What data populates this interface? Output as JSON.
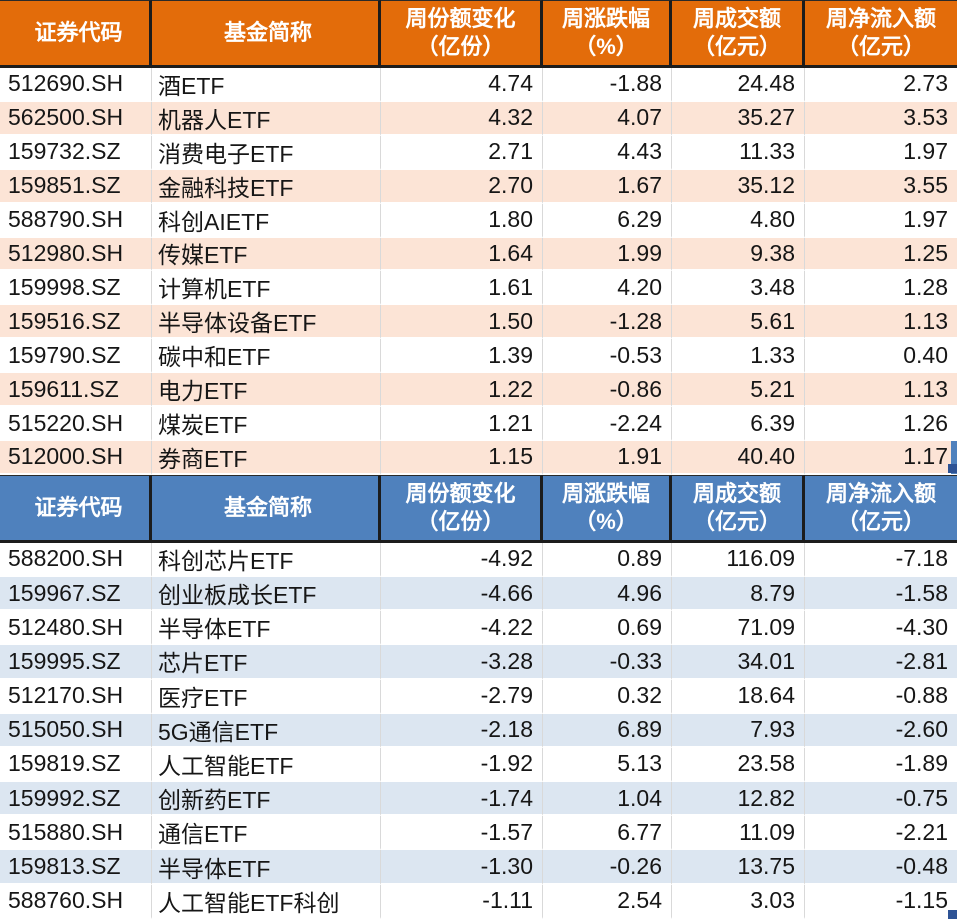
{
  "colors": {
    "inflow_header": "#E36C0A",
    "inflow_alt_row": "#FCE4D6",
    "outflow_header": "#4F81BD",
    "outflow_alt_row": "#DCE6F1",
    "fill_handle": "#2E5395",
    "data_text": "#161616",
    "header_text": "#FFFFFF"
  },
  "tables": [
    {
      "name": "inflow-table",
      "theme": "orange",
      "headers": [
        {
          "title": "证券代码",
          "unit": ""
        },
        {
          "title": "基金简称",
          "unit": ""
        },
        {
          "title": "周份额变化",
          "unit": "（亿份）"
        },
        {
          "title": "周涨跌幅",
          "unit": "（%）"
        },
        {
          "title": "周成交额",
          "unit": "（亿元）"
        },
        {
          "title": "周净流入额",
          "unit": "（亿元）"
        }
      ],
      "rows": [
        [
          "512690.SH",
          "酒ETF",
          "4.74",
          "-1.88",
          "24.48",
          "2.73"
        ],
        [
          "562500.SH",
          "机器人ETF",
          "4.32",
          "4.07",
          "35.27",
          "3.53"
        ],
        [
          "159732.SZ",
          "消费电子ETF",
          "2.71",
          "4.43",
          "11.33",
          "1.97"
        ],
        [
          "159851.SZ",
          "金融科技ETF",
          "2.70",
          "1.67",
          "35.12",
          "3.55"
        ],
        [
          "588790.SH",
          "科创AIETF",
          "1.80",
          "6.29",
          "4.80",
          "1.97"
        ],
        [
          "512980.SH",
          "传媒ETF",
          "1.64",
          "1.99",
          "9.38",
          "1.25"
        ],
        [
          "159998.SZ",
          "计算机ETF",
          "1.61",
          "4.20",
          "3.48",
          "1.28"
        ],
        [
          "159516.SZ",
          "半导体设备ETF",
          "1.50",
          "-1.28",
          "5.61",
          "1.13"
        ],
        [
          "159790.SZ",
          "碳中和ETF",
          "1.39",
          "-0.53",
          "1.33",
          "0.40"
        ],
        [
          "159611.SZ",
          "电力ETF",
          "1.22",
          "-0.86",
          "5.21",
          "1.13"
        ],
        [
          "515220.SH",
          "煤炭ETF",
          "1.21",
          "-2.24",
          "6.39",
          "1.26"
        ],
        [
          "512000.SH",
          "券商ETF",
          "1.15",
          "1.91",
          "40.40",
          "1.17"
        ]
      ]
    },
    {
      "name": "outflow-table",
      "theme": "blue",
      "headers": [
        {
          "title": "证券代码",
          "unit": ""
        },
        {
          "title": "基金简称",
          "unit": ""
        },
        {
          "title": "周份额变化",
          "unit": "（亿份）"
        },
        {
          "title": "周涨跌幅",
          "unit": "（%）"
        },
        {
          "title": "周成交额",
          "unit": "（亿元）"
        },
        {
          "title": "周净流入额",
          "unit": "（亿元）"
        }
      ],
      "rows": [
        [
          "588200.SH",
          "科创芯片ETF",
          "-4.92",
          "0.89",
          "116.09",
          "-7.18"
        ],
        [
          "159967.SZ",
          "创业板成长ETF",
          "-4.66",
          "4.96",
          "8.79",
          "-1.58"
        ],
        [
          "512480.SH",
          "半导体ETF",
          "-4.22",
          "0.69",
          "71.09",
          "-4.30"
        ],
        [
          "159995.SZ",
          "芯片ETF",
          "-3.28",
          "-0.33",
          "34.01",
          "-2.81"
        ],
        [
          "512170.SH",
          "医疗ETF",
          "-2.79",
          "0.32",
          "18.64",
          "-0.88"
        ],
        [
          "515050.SH",
          "5G通信ETF",
          "-2.18",
          "6.89",
          "7.93",
          "-2.60"
        ],
        [
          "159819.SZ",
          "人工智能ETF",
          "-1.92",
          "5.13",
          "23.58",
          "-1.89"
        ],
        [
          "159992.SZ",
          "创新药ETF",
          "-1.74",
          "1.04",
          "12.82",
          "-0.75"
        ],
        [
          "515880.SH",
          "通信ETF",
          "-1.57",
          "6.77",
          "11.09",
          "-2.21"
        ],
        [
          "159813.SZ",
          "半导体ETF",
          "-1.30",
          "-0.26",
          "13.75",
          "-0.48"
        ],
        [
          "588760.SH",
          "人工智能ETF科创",
          "-1.11",
          "2.54",
          "3.03",
          "-1.15"
        ]
      ]
    }
  ]
}
